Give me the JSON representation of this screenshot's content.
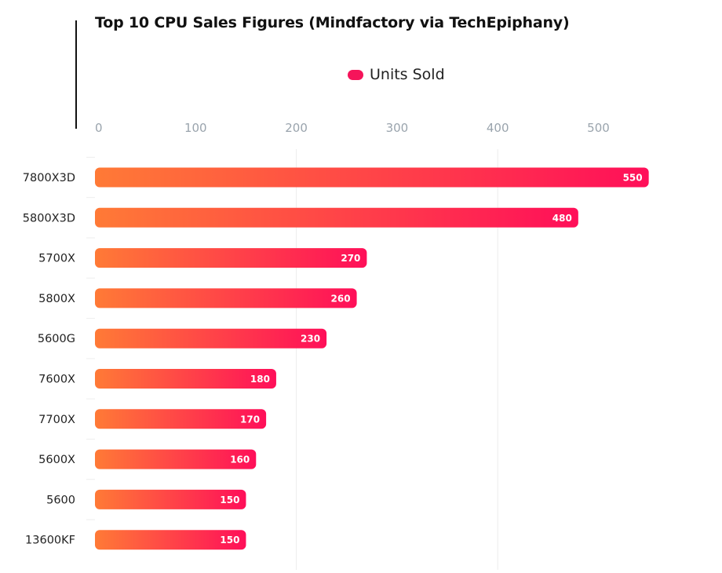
{
  "chart_data": {
    "type": "bar",
    "orientation": "horizontal",
    "title": "Top 10 CPU Sales Figures (Mindfactory via TechEpiphany)",
    "categories": [
      "7800X3D",
      "5800X3D",
      "5700X",
      "5800X",
      "5600G",
      "7600X",
      "7700X",
      "5600X",
      "5600",
      "13600KF"
    ],
    "series": [
      {
        "name": "Units Sold",
        "values": [
          550,
          480,
          270,
          260,
          230,
          180,
          170,
          160,
          150,
          150
        ]
      }
    ],
    "xlim": [
      0,
      570
    ],
    "xticks": [
      0,
      100,
      200,
      300,
      400,
      500
    ],
    "xaxis_position": "top",
    "legend_position": "top-center",
    "grid": true,
    "data_labels": true,
    "colors": {
      "gradient_start": "#ff7a36",
      "gradient_end": "#ff0f59",
      "legend_swatch": "#f5145a"
    }
  }
}
